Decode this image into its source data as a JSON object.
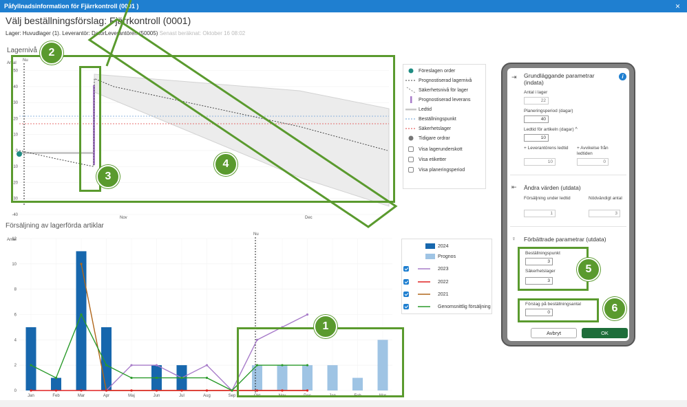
{
  "window": {
    "title": "Påfyllnadsinformation för Fjärrkontroll (0001 )",
    "close_glyph": "×"
  },
  "header": {
    "title": "Välj beställningsförslag: Fjärrkontroll (0001)",
    "info": "Lager: Huvudlager (1). Leverantör: DatorLeverantören (50005)",
    "calculated": "Senast beräknat: Oktober 16 08:02"
  },
  "inventory_chart": {
    "section_title": "Lagernivå",
    "y_axis_label": "Antal",
    "now_label": "Nu",
    "y_ticks": [
      "50",
      "40",
      "30",
      "20",
      "10",
      "0",
      "-10",
      "-20",
      "-30",
      "-40"
    ],
    "x_ticks": [
      "Nov",
      "Dec"
    ],
    "legend": [
      {
        "label": "Föreslagen order"
      },
      {
        "label": "Prognostiserad lagernivå"
      },
      {
        "label": "Säkerhetsnivå för lager"
      },
      {
        "label": "Prognostiserad leverans"
      },
      {
        "label": "Ledtid"
      },
      {
        "label": "Beställningspunkt"
      },
      {
        "label": "Säkerhetslager"
      },
      {
        "label": "Tidigare ordrar"
      },
      {
        "label": "Visa lagerunderskott"
      },
      {
        "label": "Visa etiketter"
      },
      {
        "label": "Visa planeringsperiod"
      }
    ]
  },
  "sales_chart": {
    "section_title": "Försäljning av lagerförda artiklar",
    "y_axis_label": "Antal",
    "now_label": "Nu",
    "y_ticks": [
      "12",
      "10",
      "8",
      "6",
      "4",
      "2",
      "0"
    ],
    "legend": [
      {
        "label": "2024"
      },
      {
        "label": "Prognos"
      },
      {
        "label": "2023"
      },
      {
        "label": "2022"
      },
      {
        "label": "2021"
      },
      {
        "label": "Genomsnittlig försäljning"
      }
    ]
  },
  "chart_data": [
    {
      "type": "line",
      "title": "Lagernivå",
      "ylabel": "Antal",
      "x_ticks": [
        "Nov",
        "Dec"
      ],
      "ylim": [
        -40,
        55
      ],
      "reference_lines": {
        "Beställningspunkt": 25,
        "Säkerhetslager": 20
      },
      "series": [
        {
          "name": "Prognostiserad lagernivå",
          "values": [
            0,
            -5,
            -10,
            45,
            40,
            15,
            0
          ]
        },
        {
          "name": "Föreslagen order",
          "values": [
            0
          ]
        }
      ]
    },
    {
      "type": "bar",
      "title": "Försäljning av lagerförda artiklar",
      "ylabel": "Antal",
      "categories": [
        "Jan",
        "Feb",
        "Mar",
        "Apr",
        "Maj",
        "Jun",
        "Jul",
        "Aug",
        "Sep",
        "Okt",
        "Nov",
        "Dec",
        "Jan",
        "Feb",
        "Mar"
      ],
      "ylim": [
        0,
        12
      ],
      "series": [
        {
          "name": "2024",
          "values": [
            5,
            1,
            11,
            5,
            0,
            2,
            2,
            0,
            0,
            null,
            null,
            null,
            null,
            null,
            null
          ]
        },
        {
          "name": "Prognos",
          "values": [
            null,
            null,
            null,
            null,
            null,
            null,
            null,
            null,
            null,
            2,
            2,
            2,
            2,
            1,
            4
          ]
        },
        {
          "name": "2023",
          "values": [
            null,
            null,
            null,
            0,
            2,
            2,
            1,
            2,
            0,
            4,
            5,
            6,
            null,
            null,
            null
          ]
        },
        {
          "name": "2022",
          "values": [
            0,
            0,
            0,
            0,
            0,
            0,
            0,
            0,
            0,
            0,
            0,
            0,
            null,
            null,
            null
          ]
        },
        {
          "name": "2021",
          "values": [
            null,
            null,
            10,
            0,
            0,
            0,
            0,
            0,
            0,
            0,
            0,
            0,
            null,
            null,
            null
          ]
        },
        {
          "name": "Genomsnittlig försäljning",
          "values": [
            2,
            1,
            6,
            2,
            1,
            1,
            1,
            1,
            0,
            2,
            2,
            2,
            null,
            null,
            null
          ]
        }
      ]
    }
  ],
  "panel": {
    "section1_title": "Grundläggande parametrar (indata)",
    "on_hand_label": "Antal i lager",
    "on_hand_value": "22",
    "planning_period_label": "Planeringsperiod (dagar)",
    "planning_period_value": "40",
    "lead_time_label": "Ledtid för artikeln (dagar)",
    "lead_time_value": "10",
    "vendor_lead_label": "+ Leverantörens ledtid",
    "vendor_lead_value": "10",
    "deviation_label": "+ Avvikelse från ledtiden",
    "deviation_value": "0",
    "section2_title": "Ändra värden (utdata)",
    "sales_lead_label": "Försäljning under ledtid",
    "sales_lead_value": "1",
    "required_label": "Nödvändigt antal",
    "required_value": "3",
    "section3_title": "Förbättrade parametrar (utdata)",
    "reorder_point_label": "Beställningspunkt",
    "reorder_point_value": "3",
    "safety_stock_label": "Säkerhetslager",
    "safety_stock_value": "3",
    "suggested_qty_label": "Förslag på beställningsantal",
    "suggested_qty_value": "0",
    "cancel_label": "Avbryt",
    "ok_label": "OK"
  },
  "callouts": [
    "1",
    "2",
    "3",
    "4",
    "5",
    "6"
  ],
  "colors": {
    "accent": "#1f7fd0",
    "bar_2024": "#1767ad",
    "bar_forecast": "#9fc4e4",
    "line_2023": "#a77bc9",
    "line_2022": "#e02020",
    "line_2021": "#b0661a",
    "line_avg": "#2a9a2a",
    "teal": "#1f8c82",
    "callout_green": "#5a9a2e"
  }
}
